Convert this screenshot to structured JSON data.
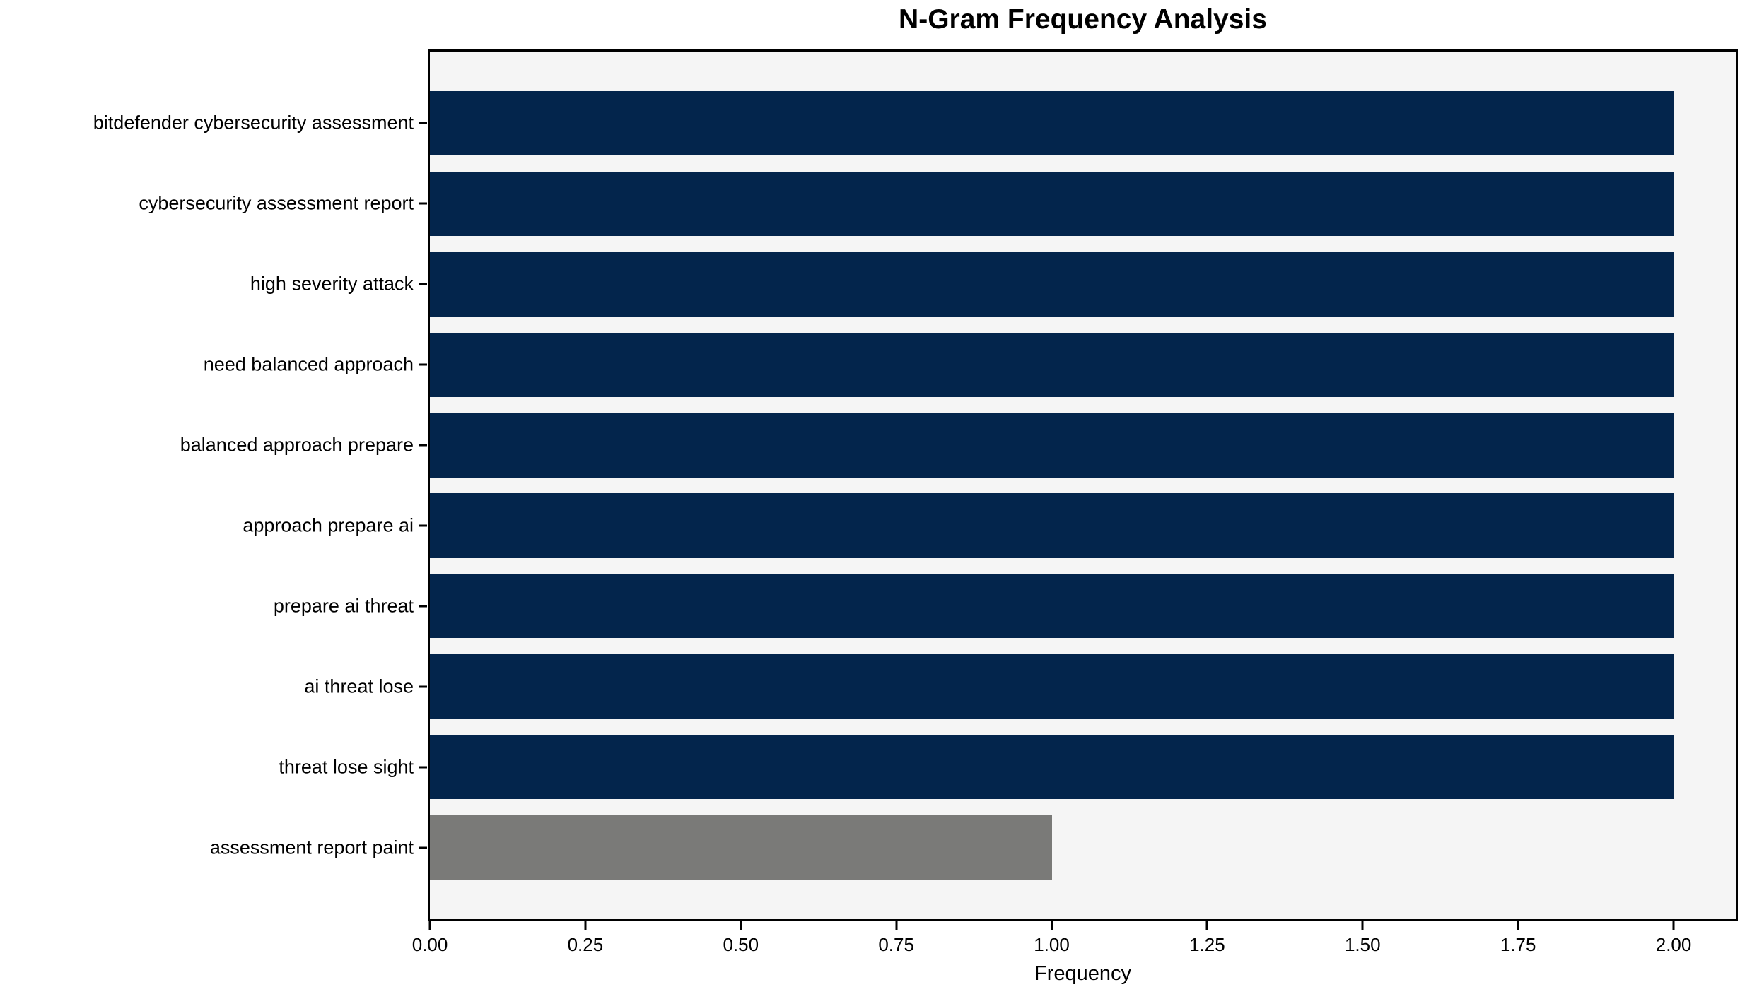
{
  "chart_data": {
    "type": "bar",
    "orientation": "horizontal",
    "title": "N-Gram Frequency Analysis",
    "xlabel": "Frequency",
    "ylabel": "",
    "categories": [
      "bitdefender cybersecurity assessment",
      "cybersecurity assessment report",
      "high severity attack",
      "need balanced approach",
      "balanced approach prepare",
      "approach prepare ai",
      "prepare ai threat",
      "ai threat lose",
      "threat lose sight",
      "assessment report paint"
    ],
    "values": [
      2,
      2,
      2,
      2,
      2,
      2,
      2,
      2,
      2,
      1
    ],
    "bar_colors": [
      "#03254c",
      "#03254c",
      "#03254c",
      "#03254c",
      "#03254c",
      "#03254c",
      "#03254c",
      "#03254c",
      "#03254c",
      "#7a7a78"
    ],
    "xlim": [
      0,
      2.1
    ],
    "xticks": [
      0,
      0.25,
      0.5,
      0.75,
      1.0,
      1.25,
      1.5,
      1.75,
      2.0
    ],
    "xtick_labels": [
      "0.00",
      "0.25",
      "0.50",
      "0.75",
      "1.00",
      "1.25",
      "1.50",
      "1.75",
      "2.00"
    ],
    "grid": false,
    "legend": null,
    "colors": {
      "bar_default": "#03254c",
      "bar_highlight": "#7a7a78",
      "plot_background": "#f5f5f5",
      "figure_background": "#ffffff",
      "axis_line": "#000000",
      "text": "#000000"
    }
  }
}
